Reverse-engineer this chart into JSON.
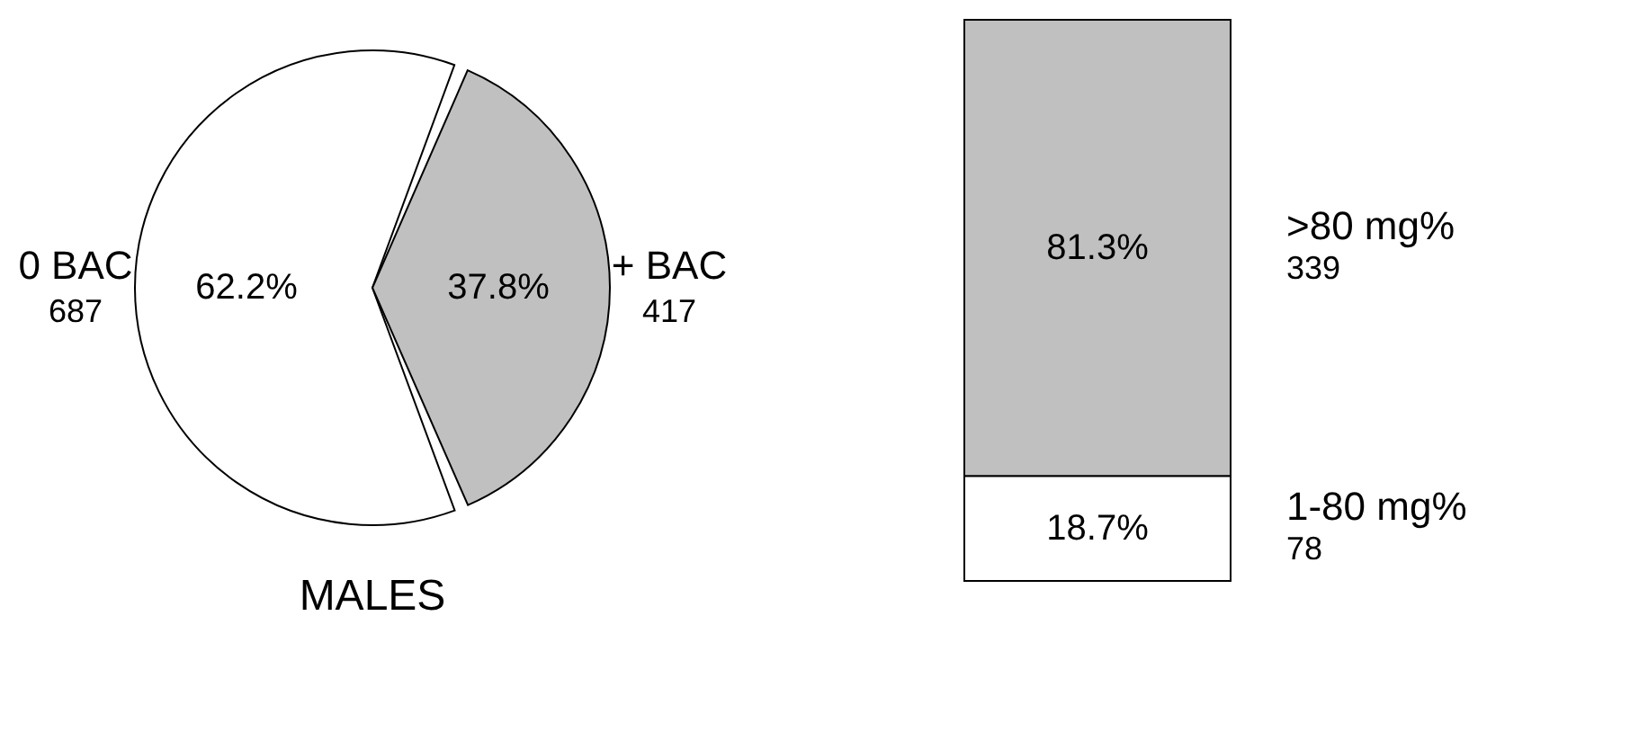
{
  "chart_data": [
    {
      "type": "pie",
      "title": "MALES",
      "categories": [
        "0 BAC",
        "+ BAC"
      ],
      "values": [
        62.2,
        37.8
      ],
      "colors": [
        "#ffffff",
        "#c0c0c0"
      ],
      "value_labels": [
        "62.2%",
        "37.8%"
      ],
      "annotations": [
        "687",
        "417"
      ]
    },
    {
      "type": "bar",
      "stacked": true,
      "categories": [
        null
      ],
      "series": [
        {
          "name": "1-80 mg%",
          "color": "#ffffff",
          "values": [
            18.7
          ],
          "value_labels": [
            "18.7%"
          ]
        },
        {
          "name": ">80 mg%",
          "color": "#c0c0c0",
          "values": [
            81.3
          ],
          "value_labels": [
            "81.3%"
          ]
        }
      ],
      "annotations": [
        "78",
        "339"
      ]
    }
  ]
}
